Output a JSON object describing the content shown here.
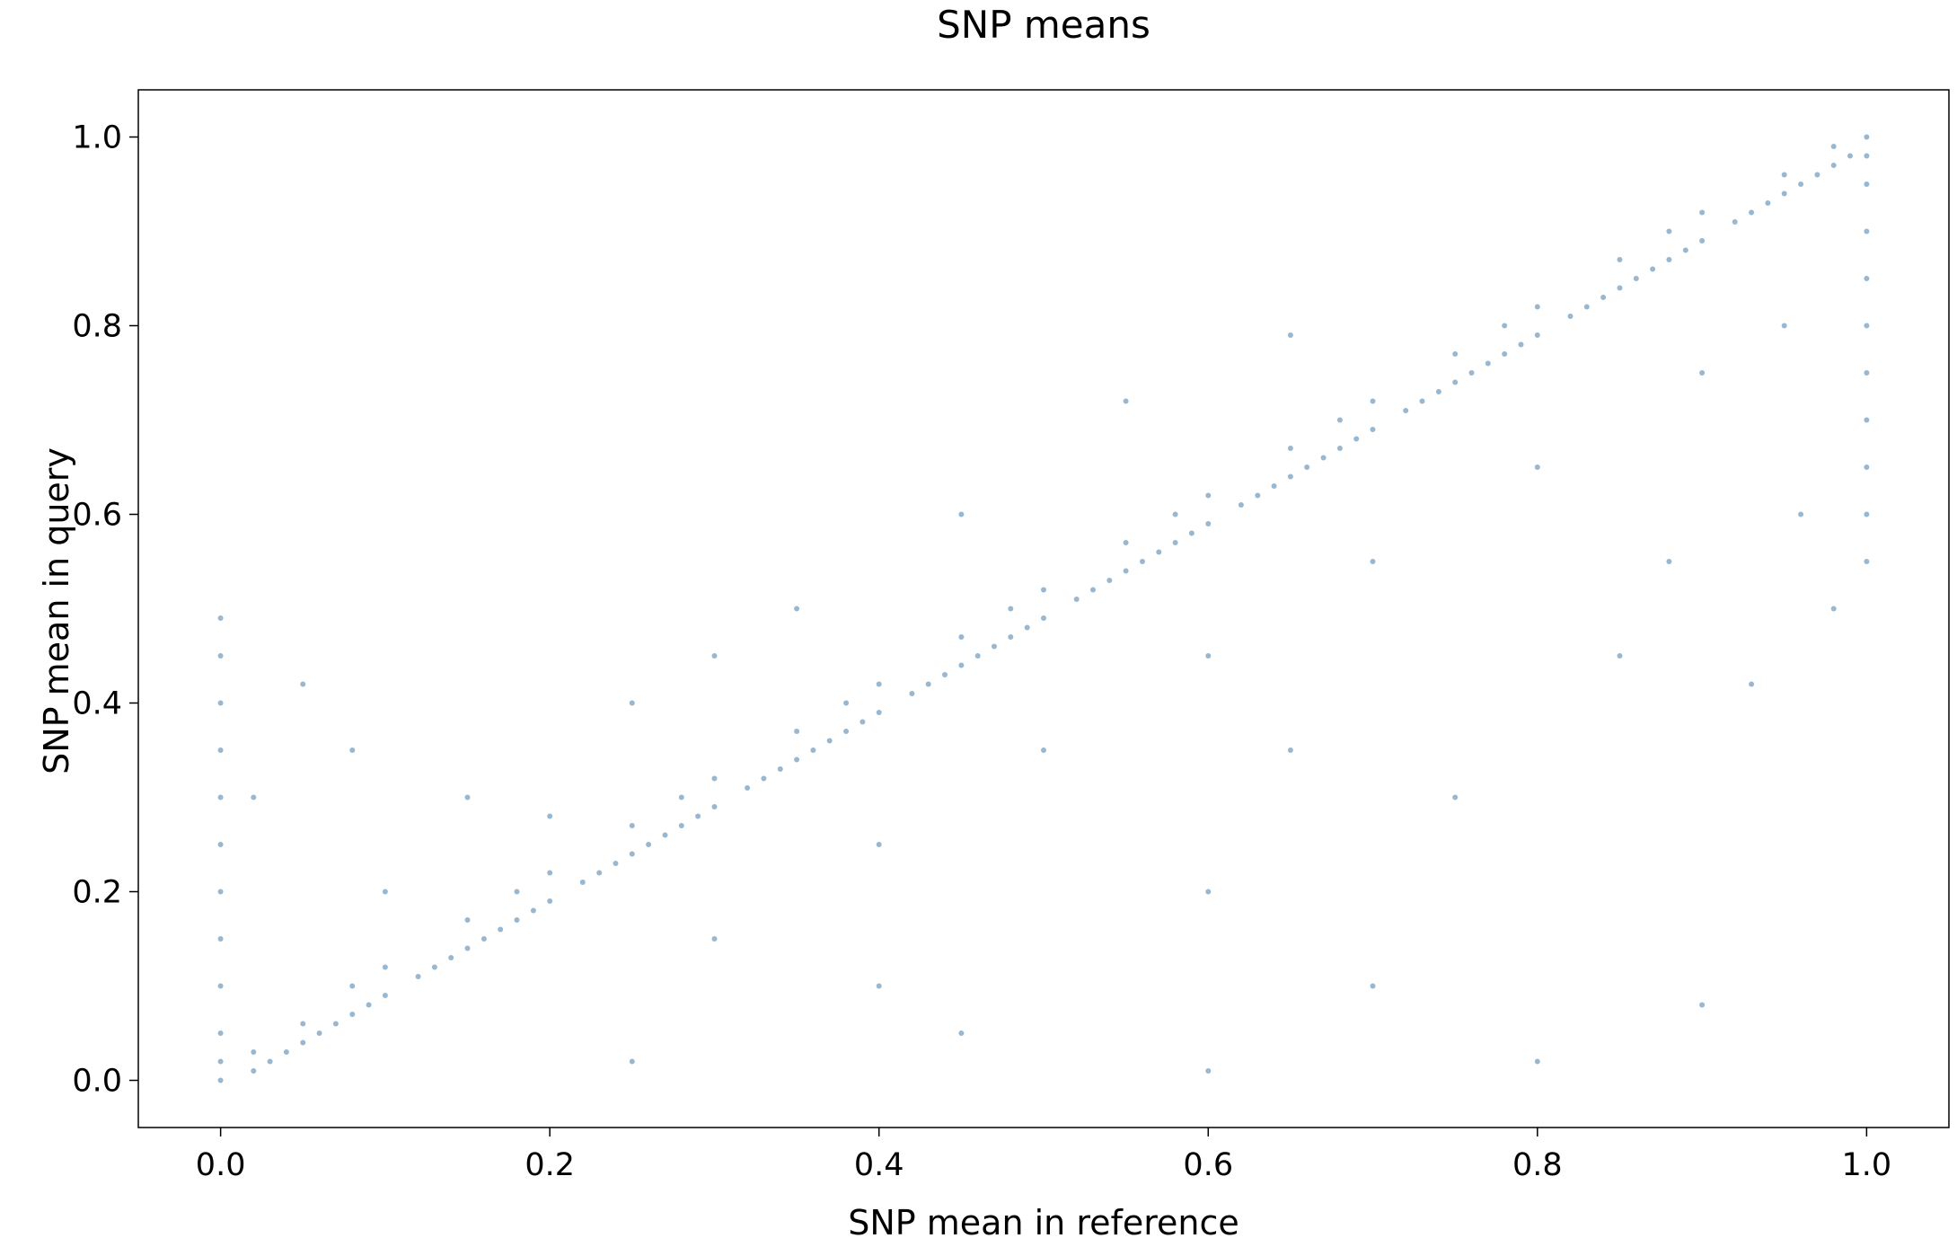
{
  "chart_data": {
    "type": "scatter",
    "title": "SNP means",
    "xlabel": "SNP mean in reference",
    "ylabel": "SNP mean in query",
    "xlim": [
      -0.05,
      1.05
    ],
    "ylim": [
      -0.05,
      1.05
    ],
    "xticks": [
      "0.0",
      "0.2",
      "0.4",
      "0.6",
      "0.8",
      "1.0"
    ],
    "yticks": [
      "0.0",
      "0.2",
      "0.4",
      "0.6",
      "0.8",
      "1.0"
    ],
    "grid": false,
    "legend": "none",
    "marker_color": "#1f5f96",
    "marker_opacity": 0.45,
    "series": [
      {
        "points": [
          [
            0.0,
            0.0
          ],
          [
            0.0,
            0.02
          ],
          [
            0.0,
            0.05
          ],
          [
            0.0,
            0.1
          ],
          [
            0.0,
            0.15
          ],
          [
            0.0,
            0.2
          ],
          [
            0.0,
            0.25
          ],
          [
            0.0,
            0.3
          ],
          [
            0.0,
            0.35
          ],
          [
            0.0,
            0.4
          ],
          [
            0.0,
            0.45
          ],
          [
            0.0,
            0.49
          ],
          [
            0.02,
            0.01
          ],
          [
            0.02,
            0.03
          ],
          [
            0.03,
            0.02
          ],
          [
            0.04,
            0.03
          ],
          [
            0.05,
            0.04
          ],
          [
            0.05,
            0.06
          ],
          [
            0.06,
            0.05
          ],
          [
            0.07,
            0.06
          ],
          [
            0.08,
            0.07
          ],
          [
            0.08,
            0.1
          ],
          [
            0.09,
            0.08
          ],
          [
            0.1,
            0.09
          ],
          [
            0.1,
            0.12
          ],
          [
            0.12,
            0.11
          ],
          [
            0.13,
            0.12
          ],
          [
            0.14,
            0.13
          ],
          [
            0.15,
            0.14
          ],
          [
            0.15,
            0.17
          ],
          [
            0.16,
            0.15
          ],
          [
            0.17,
            0.16
          ],
          [
            0.18,
            0.17
          ],
          [
            0.18,
            0.2
          ],
          [
            0.19,
            0.18
          ],
          [
            0.2,
            0.19
          ],
          [
            0.2,
            0.22
          ],
          [
            0.22,
            0.21
          ],
          [
            0.23,
            0.22
          ],
          [
            0.24,
            0.23
          ],
          [
            0.25,
            0.24
          ],
          [
            0.25,
            0.27
          ],
          [
            0.26,
            0.25
          ],
          [
            0.27,
            0.26
          ],
          [
            0.28,
            0.27
          ],
          [
            0.28,
            0.3
          ],
          [
            0.29,
            0.28
          ],
          [
            0.3,
            0.29
          ],
          [
            0.3,
            0.32
          ],
          [
            0.32,
            0.31
          ],
          [
            0.33,
            0.32
          ],
          [
            0.34,
            0.33
          ],
          [
            0.35,
            0.34
          ],
          [
            0.35,
            0.37
          ],
          [
            0.36,
            0.35
          ],
          [
            0.37,
            0.36
          ],
          [
            0.38,
            0.37
          ],
          [
            0.38,
            0.4
          ],
          [
            0.39,
            0.38
          ],
          [
            0.4,
            0.39
          ],
          [
            0.4,
            0.42
          ],
          [
            0.42,
            0.41
          ],
          [
            0.43,
            0.42
          ],
          [
            0.44,
            0.43
          ],
          [
            0.45,
            0.44
          ],
          [
            0.45,
            0.47
          ],
          [
            0.46,
            0.45
          ],
          [
            0.47,
            0.46
          ],
          [
            0.48,
            0.47
          ],
          [
            0.48,
            0.5
          ],
          [
            0.49,
            0.48
          ],
          [
            0.5,
            0.49
          ],
          [
            0.5,
            0.52
          ],
          [
            0.52,
            0.51
          ],
          [
            0.53,
            0.52
          ],
          [
            0.54,
            0.53
          ],
          [
            0.55,
            0.54
          ],
          [
            0.55,
            0.57
          ],
          [
            0.56,
            0.55
          ],
          [
            0.57,
            0.56
          ],
          [
            0.58,
            0.57
          ],
          [
            0.58,
            0.6
          ],
          [
            0.59,
            0.58
          ],
          [
            0.6,
            0.59
          ],
          [
            0.6,
            0.62
          ],
          [
            0.62,
            0.61
          ],
          [
            0.63,
            0.62
          ],
          [
            0.64,
            0.63
          ],
          [
            0.65,
            0.64
          ],
          [
            0.65,
            0.67
          ],
          [
            0.66,
            0.65
          ],
          [
            0.67,
            0.66
          ],
          [
            0.68,
            0.67
          ],
          [
            0.68,
            0.7
          ],
          [
            0.69,
            0.68
          ],
          [
            0.7,
            0.69
          ],
          [
            0.7,
            0.72
          ],
          [
            0.72,
            0.71
          ],
          [
            0.73,
            0.72
          ],
          [
            0.74,
            0.73
          ],
          [
            0.75,
            0.74
          ],
          [
            0.75,
            0.77
          ],
          [
            0.76,
            0.75
          ],
          [
            0.77,
            0.76
          ],
          [
            0.78,
            0.77
          ],
          [
            0.78,
            0.8
          ],
          [
            0.79,
            0.78
          ],
          [
            0.8,
            0.79
          ],
          [
            0.8,
            0.82
          ],
          [
            0.82,
            0.81
          ],
          [
            0.83,
            0.82
          ],
          [
            0.84,
            0.83
          ],
          [
            0.85,
            0.84
          ],
          [
            0.85,
            0.87
          ],
          [
            0.86,
            0.85
          ],
          [
            0.87,
            0.86
          ],
          [
            0.88,
            0.87
          ],
          [
            0.88,
            0.9
          ],
          [
            0.89,
            0.88
          ],
          [
            0.9,
            0.89
          ],
          [
            0.9,
            0.92
          ],
          [
            0.92,
            0.91
          ],
          [
            0.93,
            0.92
          ],
          [
            0.94,
            0.93
          ],
          [
            0.95,
            0.94
          ],
          [
            0.95,
            0.96
          ],
          [
            0.96,
            0.95
          ],
          [
            0.97,
            0.96
          ],
          [
            0.98,
            0.97
          ],
          [
            0.98,
            0.99
          ],
          [
            0.99,
            0.98
          ],
          [
            1.0,
            1.0
          ],
          [
            1.0,
            0.98
          ],
          [
            1.0,
            0.95
          ],
          [
            1.0,
            0.9
          ],
          [
            1.0,
            0.85
          ],
          [
            1.0,
            0.8
          ],
          [
            1.0,
            0.75
          ],
          [
            1.0,
            0.7
          ],
          [
            1.0,
            0.65
          ],
          [
            1.0,
            0.6
          ],
          [
            1.0,
            0.55
          ],
          [
            0.1,
            0.2
          ],
          [
            0.15,
            0.3
          ],
          [
            0.2,
            0.28
          ],
          [
            0.25,
            0.4
          ],
          [
            0.3,
            0.45
          ],
          [
            0.35,
            0.5
          ],
          [
            0.45,
            0.6
          ],
          [
            0.55,
            0.72
          ],
          [
            0.65,
            0.79
          ],
          [
            0.3,
            0.15
          ],
          [
            0.4,
            0.25
          ],
          [
            0.5,
            0.35
          ],
          [
            0.6,
            0.45
          ],
          [
            0.7,
            0.55
          ],
          [
            0.8,
            0.65
          ],
          [
            0.9,
            0.75
          ],
          [
            0.95,
            0.8
          ],
          [
            0.02,
            0.3
          ],
          [
            0.05,
            0.42
          ],
          [
            0.08,
            0.35
          ],
          [
            0.25,
            0.02
          ],
          [
            0.4,
            0.1
          ],
          [
            0.6,
            0.2
          ],
          [
            0.75,
            0.3
          ],
          [
            0.85,
            0.45
          ],
          [
            0.96,
            0.6
          ],
          [
            0.93,
            0.42
          ],
          [
            0.6,
            0.01
          ],
          [
            0.8,
            0.02
          ],
          [
            0.9,
            0.08
          ],
          [
            0.45,
            0.05
          ],
          [
            0.7,
            0.1
          ],
          [
            0.65,
            0.35
          ],
          [
            0.88,
            0.55
          ],
          [
            0.98,
            0.5
          ]
        ]
      }
    ]
  }
}
